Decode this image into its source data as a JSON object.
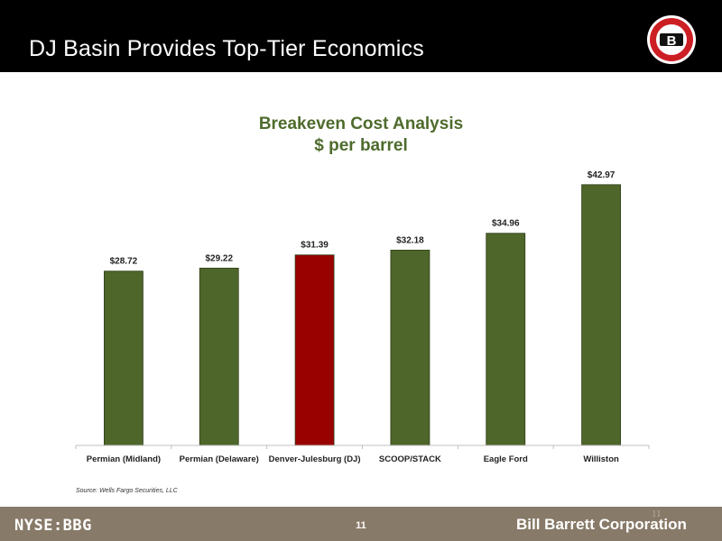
{
  "header": {
    "title": "DJ Basin Provides Top-Tier Economics",
    "logo_letter": "B"
  },
  "chart_title": {
    "line1": "Breakeven Cost Analysis",
    "line2": "$ per barrel"
  },
  "chart_data": {
    "type": "bar",
    "title": "Breakeven Cost Analysis\n$ per barrel",
    "xlabel": "",
    "ylabel": "",
    "categories": [
      "Permian (Midland)",
      "Permian (Delaware)",
      "Denver-Julesburg (DJ)",
      "SCOOP/STACK",
      "Eagle Ford",
      "Williston"
    ],
    "values": [
      28.72,
      29.22,
      31.39,
      32.18,
      34.96,
      42.97
    ],
    "value_labels": [
      "$28.72",
      "$29.22",
      "$31.39",
      "$32.18",
      "$34.96",
      "$42.97"
    ],
    "ylim": [
      0,
      45
    ],
    "grid": false,
    "bar_color": "#4e6629",
    "highlight_color": "#990000",
    "highlight_index": 2
  },
  "source": "Source: Wells Fargo Securities, LLC",
  "footer": {
    "ticker": "NYSE:BBG",
    "page": "11",
    "company": "Bill Barrett Corporation",
    "page_small": "11"
  },
  "colors": {
    "header_bg": "#000000",
    "footer_bg": "#887a68",
    "title_green": "#4e6b2c",
    "logo_red": "#cc1f24"
  }
}
